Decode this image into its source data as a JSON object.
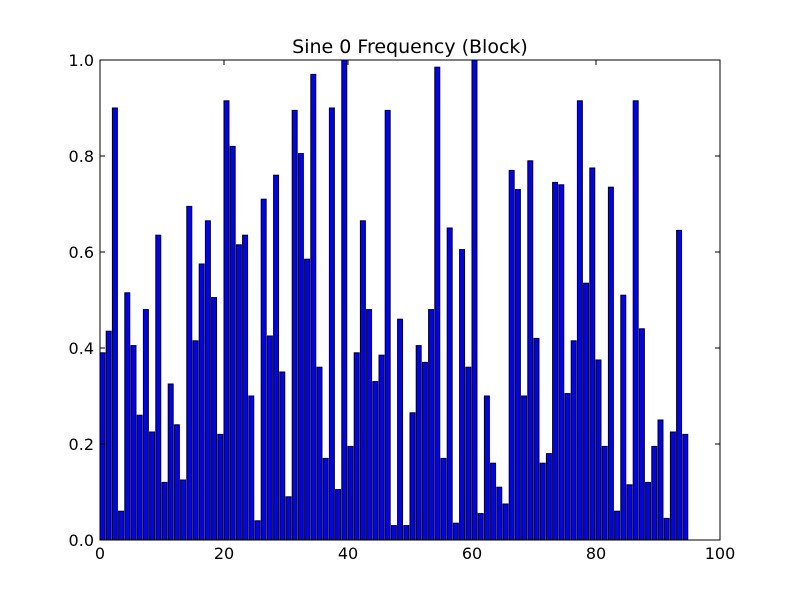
{
  "chart_data": {
    "type": "bar",
    "title": "Sine 0 Frequency (Block)",
    "xlabel": "",
    "ylabel": "",
    "xlim": [
      0,
      100
    ],
    "ylim": [
      0.0,
      1.0
    ],
    "x_ticks": [
      0,
      20,
      40,
      60,
      80,
      100
    ],
    "y_ticks": [
      0.0,
      0.2,
      0.4,
      0.6,
      0.8,
      1.0
    ],
    "x_tick_labels": [
      "0",
      "20",
      "40",
      "60",
      "80",
      "100"
    ],
    "y_tick_labels": [
      "0.0",
      "0.2",
      "0.4",
      "0.6",
      "0.8",
      "1.0"
    ],
    "grid": false,
    "bar_color": "#0000ff",
    "edge_color": "#000000",
    "bar_width": 0.8,
    "x": [
      0,
      1,
      2,
      3,
      4,
      5,
      6,
      7,
      8,
      9,
      10,
      11,
      12,
      13,
      14,
      15,
      16,
      17,
      18,
      19,
      20,
      21,
      22,
      23,
      24,
      25,
      26,
      27,
      28,
      29,
      30,
      31,
      32,
      33,
      34,
      35,
      36,
      37,
      38,
      39,
      40,
      41,
      42,
      43,
      44,
      45,
      46,
      47,
      48,
      49,
      50,
      51,
      52,
      53,
      54,
      55,
      56,
      57,
      58,
      59,
      60,
      61,
      62,
      63,
      64,
      65,
      66,
      67,
      68,
      69,
      70,
      71,
      72,
      73,
      74,
      75,
      76,
      77,
      78,
      79,
      80,
      81,
      82,
      83,
      84,
      85,
      86,
      87,
      88,
      89,
      90,
      91,
      92,
      93,
      94,
      95
    ],
    "values": [
      0.39,
      0.435,
      0.9,
      0.06,
      0.515,
      0.405,
      0.26,
      0.48,
      0.225,
      0.635,
      0.12,
      0.325,
      0.24,
      0.125,
      0.695,
      0.415,
      0.575,
      0.665,
      0.505,
      0.22,
      0.915,
      0.82,
      0.615,
      0.635,
      0.3,
      0.04,
      0.71,
      0.425,
      0.76,
      0.35,
      0.09,
      0.895,
      0.805,
      0.585,
      0.97,
      0.36,
      0.17,
      0.9,
      0.105,
      1.0,
      0.195,
      0.39,
      0.665,
      0.48,
      0.33,
      0.385,
      0.895,
      0.03,
      0.46,
      0.03,
      0.265,
      0.405,
      0.37,
      0.48,
      0.985,
      0.17,
      0.65,
      0.035,
      0.605,
      0.36,
      1.0,
      0.055,
      0.3,
      0.16,
      0.11,
      0.075,
      0.77,
      0.73,
      0.3,
      0.79,
      0.42,
      0.16,
      0.18,
      0.745,
      0.74,
      0.305,
      0.415,
      0.915,
      0.535,
      0.775,
      0.375,
      0.195,
      0.735,
      0.06,
      0.51,
      0.115,
      0.915,
      0.44,
      0.12,
      0.195,
      0.25,
      0.045,
      0.225,
      0.645,
      0.22,
      0.0
    ]
  }
}
